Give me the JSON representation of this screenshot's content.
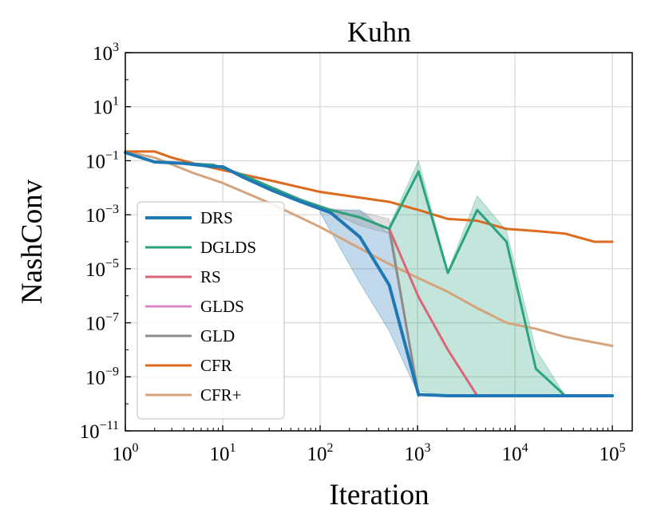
{
  "chart_data": {
    "type": "line",
    "title": "Kuhn",
    "xlabel": "Iteration",
    "ylabel": "NashConv",
    "xscale": "log",
    "yscale": "log",
    "xlim": [
      1,
      160000
    ],
    "ylim": [
      1e-11,
      1000
    ],
    "grid": true,
    "legend_position": "lower-left",
    "x_ticks": [
      {
        "base": "10",
        "exp": "0"
      },
      {
        "base": "10",
        "exp": "1"
      },
      {
        "base": "10",
        "exp": "2"
      },
      {
        "base": "10",
        "exp": "3"
      },
      {
        "base": "10",
        "exp": "4"
      },
      {
        "base": "10",
        "exp": "5"
      }
    ],
    "y_ticks": [
      {
        "base": "10",
        "exp": "3"
      },
      {
        "base": "10",
        "exp": "1"
      },
      {
        "base": "10",
        "exp": "−1"
      },
      {
        "base": "10",
        "exp": "−3"
      },
      {
        "base": "10",
        "exp": "−5"
      },
      {
        "base": "10",
        "exp": "−7"
      },
      {
        "base": "10",
        "exp": "−9"
      },
      {
        "base": "10",
        "exp": "−11"
      }
    ],
    "series": [
      {
        "name": "DRS",
        "color": "#1f77b4",
        "width": 4,
        "x": [
          1,
          2,
          4,
          8,
          10,
          16,
          32,
          64,
          128,
          256,
          512,
          1024,
          2048,
          4096,
          8192,
          16384,
          32768,
          65536,
          100000
        ],
        "y": [
          0.2,
          0.09,
          0.08,
          0.06,
          0.06,
          0.025,
          0.008,
          0.003,
          0.0012,
          0.00015,
          2.5e-06,
          2.2e-10,
          2e-10,
          2e-10,
          2e-10,
          2e-10,
          2e-10,
          2e-10,
          2e-10
        ],
        "band": {
          "x": [
            100,
            256,
            512,
            1024
          ],
          "lower": [
            0.0012,
            3e-06,
            5e-08,
            2.2e-10
          ],
          "upper": [
            0.0015,
            0.0015,
            0.0002,
            2.2e-10
          ]
        }
      },
      {
        "name": "DGLDS",
        "color": "#2ca37f",
        "width": 3,
        "x": [
          1,
          2,
          4,
          8,
          16,
          32,
          64,
          128,
          256,
          512,
          1024,
          2048,
          4096,
          8192,
          16384,
          32768,
          100000
        ],
        "y": [
          0.2,
          0.09,
          0.08,
          0.07,
          0.03,
          0.01,
          0.0035,
          0.0015,
          0.0008,
          0.0003,
          0.04,
          7e-06,
          0.0015,
          0.0001,
          2e-09,
          2e-10,
          2e-10
        ],
        "band": {
          "x": [
            512,
            1024,
            2048,
            4096,
            8192,
            16384,
            32768
          ],
          "lower": [
            0.0002,
            3e-10,
            2e-10,
            2e-10,
            2e-10,
            2e-10,
            2e-10
          ],
          "upper": [
            0.0004,
            0.1,
            8e-06,
            0.005,
            0.00025,
            1e-08,
            2e-10
          ]
        }
      },
      {
        "name": "RS",
        "color": "#d9667a",
        "width": 3,
        "x": [
          1,
          2,
          4,
          8,
          16,
          32,
          64,
          128,
          256,
          512,
          1024,
          2048,
          4096
        ],
        "y": [
          0.2,
          0.09,
          0.08,
          0.07,
          0.03,
          0.01,
          0.0035,
          0.0015,
          0.0008,
          0.0003,
          9e-07,
          1e-08,
          2e-10
        ]
      },
      {
        "name": "GLDS",
        "color": "#d987c9",
        "width": 3,
        "x": [
          1,
          2,
          4,
          8,
          16,
          32,
          64,
          128
        ],
        "y": [
          0.2,
          0.09,
          0.08,
          0.07,
          0.03,
          0.01,
          0.0035,
          0.0015
        ]
      },
      {
        "name": "GLD",
        "color": "#8c8c8c",
        "width": 3,
        "x": [
          1,
          2,
          4,
          8,
          16,
          32,
          64,
          128,
          256,
          512,
          1024
        ],
        "y": [
          0.2,
          0.09,
          0.08,
          0.07,
          0.03,
          0.01,
          0.0035,
          0.0015,
          0.0008,
          0.0003,
          2e-10
        ],
        "band": {
          "x": [
            128,
            256,
            512,
            1024
          ],
          "lower": [
            0.0012,
            0.0004,
            0.0002,
            2e-10
          ],
          "upper": [
            0.0017,
            0.0013,
            0.0007,
            2e-10
          ]
        }
      },
      {
        "name": "CFR",
        "color": "#dc6b1f",
        "width": 3,
        "x": [
          1,
          2,
          3,
          5,
          10,
          32,
          100,
          512,
          1024,
          2048,
          4096,
          8192,
          16384,
          32768,
          65536,
          100000
        ],
        "y": [
          0.22,
          0.22,
          0.13,
          0.08,
          0.045,
          0.018,
          0.007,
          0.003,
          0.0015,
          0.0007,
          0.0006,
          0.0003,
          0.00025,
          0.0002,
          0.0001,
          0.0001
        ]
      },
      {
        "name": "CFR+",
        "color": "#d6a47c",
        "width": 3,
        "x": [
          1,
          2,
          5,
          10,
          32,
          100,
          512,
          1024,
          2048,
          4096,
          8192,
          16384,
          32768,
          100000
        ],
        "y": [
          0.22,
          0.13,
          0.035,
          0.015,
          0.0025,
          0.00035,
          1.5e-05,
          4.5e-06,
          1.4e-06,
          3.5e-07,
          1e-07,
          6e-08,
          3e-08,
          1.4e-08
        ]
      }
    ]
  }
}
